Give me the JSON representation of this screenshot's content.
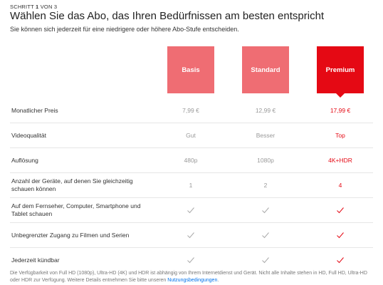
{
  "header": {
    "step_prefix": "SCHRITT ",
    "step_current": "1",
    "step_suffix": " VON 3",
    "title": "Wählen Sie das Abo, das Ihren Bedürfnissen am besten entspricht",
    "subtitle": "Sie können sich jederzeit für eine niedrigere oder höhere Abo-Stufe entscheiden."
  },
  "plans": [
    {
      "name": "Basis",
      "color": "#ef6d73",
      "selected": false
    },
    {
      "name": "Standard",
      "color": "#ef6d73",
      "selected": false
    },
    {
      "name": "Premium",
      "color": "#e50914",
      "selected": true
    }
  ],
  "rows": [
    {
      "label": "Monatlicher Preis",
      "values": [
        "7,99 €",
        "12,99 €",
        "17,99 €"
      ]
    },
    {
      "label": "Videoqualität",
      "values": [
        "Gut",
        "Besser",
        "Top"
      ]
    },
    {
      "label": "Auflösung",
      "values": [
        "480p",
        "1080p",
        "4K+HDR"
      ]
    },
    {
      "label": "Anzahl der Geräte, auf denen Sie gleichzeitig schauen können",
      "values": [
        "1",
        "2",
        "4"
      ]
    },
    {
      "label": "Auf dem Fernseher, Computer, Smartphone und Tablet schauen",
      "values": [
        "check",
        "check",
        "check"
      ]
    },
    {
      "label": "Unbegrenzter Zugang zu Filmen und Serien",
      "values": [
        "check",
        "check",
        "check"
      ]
    },
    {
      "label": "Jederzeit kündbar",
      "values": [
        "check",
        "check",
        "check"
      ]
    }
  ],
  "footnote": {
    "text": "Die Verfügbarkeit von Full HD (1080p), Ultra-HD (4K) und HDR ist abhängig von Ihrem Internetdienst und Gerät. Nicht alle Inhalte stehen in HD, Full HD, Ultra-HD oder HDR zur Verfügung. Weitere Details entnehmen Sie bitte unseren ",
    "link": "Nutzungsbedingungen",
    "end": "."
  },
  "colors": {
    "accent": "#e50914",
    "light_accent": "#ef6d73",
    "muted": "#999999",
    "link": "#0071eb"
  }
}
